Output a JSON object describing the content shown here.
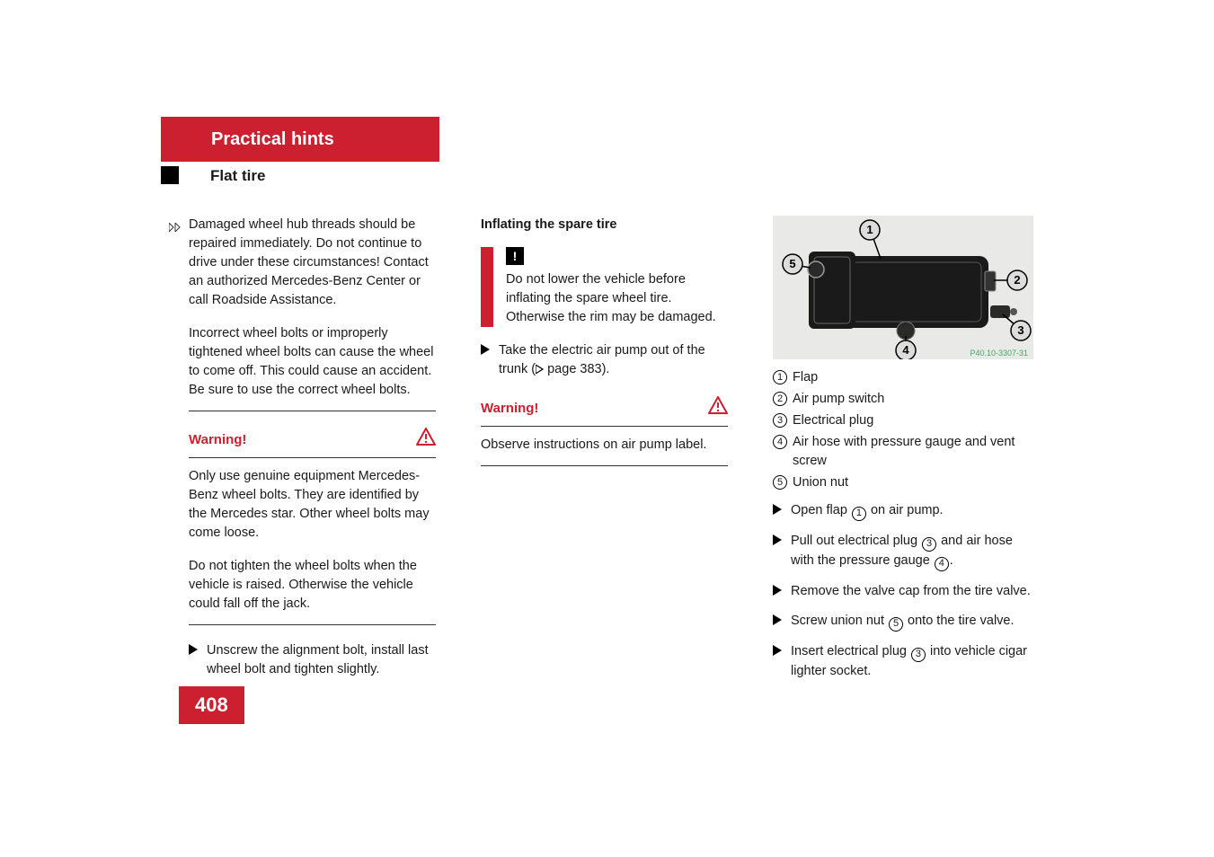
{
  "header": {
    "chapter": "Practical hints",
    "section": "Flat tire"
  },
  "col1": {
    "continued1": "Damaged wheel hub threads should be repaired immediately. Do not continue to drive under these circumstances! Contact an authorized Mercedes-Benz Center or call Roadside Assistance.",
    "continued2": "Incorrect wheel bolts or improperly tightened wheel bolts can cause the wheel to come off. This could cause an accident. Be sure to use the correct wheel bolts.",
    "warning_label": "Warning!",
    "warn_p1": "Only use genuine equipment Mercedes-Benz wheel bolts. They are identified by the Mercedes star. Other wheel bolts may come loose.",
    "warn_p2": "Do not tighten the wheel bolts when the vehicle is raised. Otherwise the vehicle could fall off the jack.",
    "step1": "Unscrew the alignment bolt, install last wheel bolt and tighten slightly."
  },
  "col2": {
    "title": "Inflating the spare tire",
    "notice": "Do not lower the vehicle before inflating the spare wheel tire. Otherwise the rim may be damaged.",
    "step1_a": "Take the electric air pump out of the trunk (",
    "step1_b": " page 383).",
    "warning_label": "Warning!",
    "warn_p1": "Observe instructions on air pump label."
  },
  "col3": {
    "legend": [
      "Flap",
      "Air pump switch",
      "Electrical plug",
      "Air hose with pressure gauge and vent screw",
      "Union nut"
    ],
    "steps": [
      {
        "pre": "Open flap ",
        "c": "1",
        "post": " on air pump."
      },
      {
        "pre": "Pull out electrical plug ",
        "c": "3",
        "mid": " and air hose with the pressure gauge ",
        "c2": "4",
        "post": "."
      },
      {
        "pre": "Remove the valve cap from the tire valve."
      },
      {
        "pre": "Screw union nut ",
        "c": "5",
        "post": " onto the tire valve."
      },
      {
        "pre": "Insert electrical plug ",
        "c": "3",
        "post": " into vehicle cigar lighter socket."
      }
    ],
    "figure": {
      "labels": [
        "1",
        "2",
        "3",
        "4",
        "5"
      ],
      "credit": "P40.10-3307-31"
    }
  },
  "page_number": "408",
  "colors": {
    "brand_red": "#cc1f2f",
    "text": "#1a1a1a"
  }
}
